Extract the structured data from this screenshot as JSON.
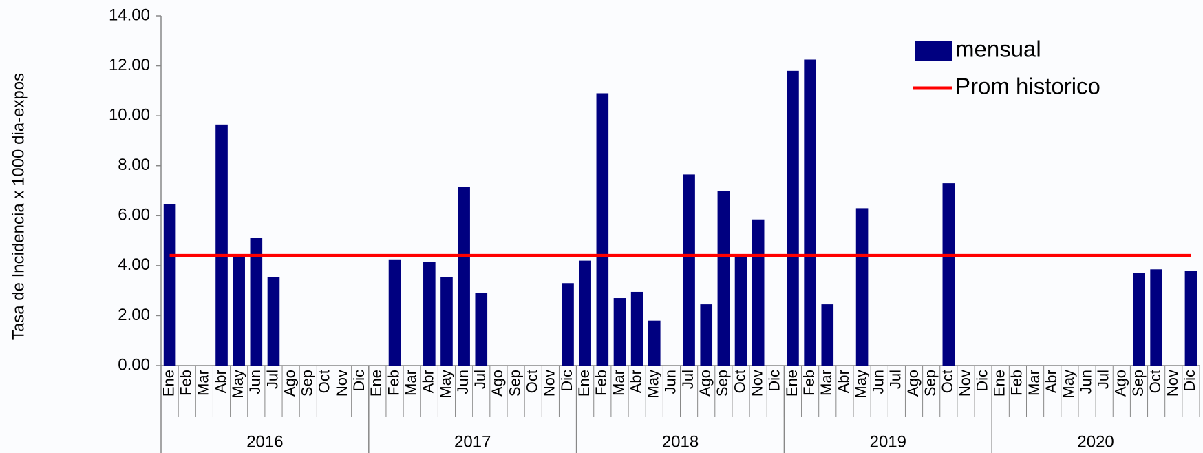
{
  "chart_data": {
    "type": "bar",
    "y_label": "Tasa de Incidencia x 1000 dia-expos",
    "categories": [
      "Ene",
      "Feb",
      "Mar",
      "Abr",
      "May",
      "Jun",
      "Jul",
      "Ago",
      "Sep",
      "Oct",
      "Nov",
      "Dic",
      "Ene",
      "Feb",
      "Mar",
      "Abr",
      "May",
      "Jun",
      "Jul",
      "Ago",
      "Sep",
      "Oct",
      "Nov",
      "Dic",
      "Ene",
      "Feb",
      "Mar",
      "Abr",
      "May",
      "Jun",
      "Jul",
      "Ago",
      "Sep",
      "Oct",
      "Nov",
      "Dic",
      "Ene",
      "Feb",
      "Mar",
      "Abr",
      "May",
      "Jun",
      "Jul",
      "Ago",
      "Sep",
      "Oct",
      "Nov",
      "Dic",
      "Ene",
      "Feb",
      "Mar",
      "Abr",
      "May",
      "Jun",
      "Jul",
      "Ago",
      "Sep",
      "Oct",
      "Nov",
      "Dic"
    ],
    "years": [
      "2016",
      "2017",
      "2018",
      "2019",
      "2020"
    ],
    "series": [
      {
        "name": "mensual",
        "type": "bar",
        "color": "#000080",
        "values": [
          6.45,
          0,
          0,
          9.65,
          4.4,
          5.1,
          3.55,
          0,
          0,
          0,
          0,
          0,
          0,
          4.25,
          0,
          4.15,
          3.55,
          7.15,
          2.9,
          0,
          0,
          0,
          0,
          3.3,
          4.2,
          10.9,
          2.7,
          2.95,
          1.8,
          0,
          7.65,
          2.45,
          7.0,
          4.4,
          5.85,
          0,
          11.8,
          12.25,
          2.45,
          0,
          6.3,
          0,
          0,
          0,
          0,
          7.3,
          0,
          0,
          0,
          0,
          0,
          0,
          0,
          0,
          0,
          0,
          3.7,
          3.85,
          0,
          3.8
        ]
      },
      {
        "name": "Prom historico",
        "type": "line",
        "color": "#ff0000",
        "values": [
          4.4,
          4.4,
          4.4,
          4.4,
          4.4,
          4.4,
          4.4,
          4.4,
          4.4,
          4.4,
          4.4,
          4.4,
          4.4,
          4.4,
          4.4,
          4.4,
          4.4,
          4.4,
          4.4,
          4.4,
          4.4,
          4.4,
          4.4,
          4.4,
          4.4,
          4.4,
          4.4,
          4.4,
          4.4,
          4.4,
          4.4,
          4.4,
          4.4,
          4.4,
          4.4,
          4.4,
          4.4,
          4.4,
          4.4,
          4.4,
          4.4,
          4.4,
          4.4,
          4.4,
          4.4,
          4.4,
          4.4,
          4.4,
          4.4,
          4.4,
          4.4,
          4.4,
          4.4,
          4.4,
          4.4,
          4.4,
          4.4,
          4.4,
          4.4,
          4.4
        ]
      }
    ],
    "ylim": [
      0,
      14
    ],
    "yticks": [
      {
        "value": 0,
        "label": "0.00"
      },
      {
        "value": 2,
        "label": "2.00"
      },
      {
        "value": 4,
        "label": "4.00"
      },
      {
        "value": 6,
        "label": "6.00"
      },
      {
        "value": 8,
        "label": "8.00"
      },
      {
        "value": 10,
        "label": "10.00"
      },
      {
        "value": 12,
        "label": "12.00"
      },
      {
        "value": 14,
        "label": "14.00"
      }
    ],
    "legend": "upper right"
  }
}
